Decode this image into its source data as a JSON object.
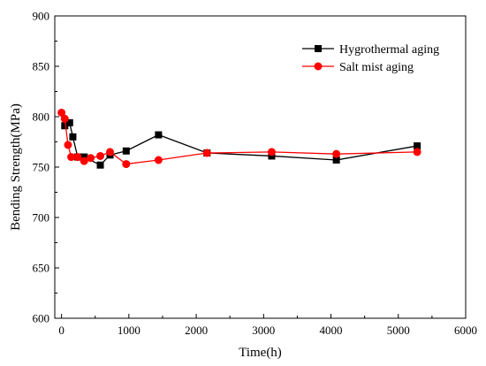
{
  "chart_data": {
    "type": "line",
    "xlabel": "Time(h)",
    "ylabel": "Bending Strength(MPa)",
    "xlim": [
      -100,
      6000
    ],
    "ylim": [
      600,
      900
    ],
    "x_ticks": [
      0,
      1000,
      2000,
      3000,
      4000,
      5000,
      6000
    ],
    "y_ticks": [
      600,
      650,
      700,
      750,
      800,
      850,
      900
    ],
    "x_tick_labels": [
      "0",
      "1000",
      "2000",
      "3000",
      "4000",
      "5000",
      "6000"
    ],
    "y_tick_labels": [
      "600",
      "650",
      "700",
      "750",
      "800",
      "850",
      "900"
    ],
    "grid": false,
    "legend_position": "top-right",
    "series": [
      {
        "name": "Hygrothermal aging",
        "color": "#000000",
        "marker": "square",
        "x": [
          48,
          120,
          168,
          240,
          336,
          576,
          720,
          960,
          1440,
          2160,
          3120,
          4080,
          5280
        ],
        "y": [
          791,
          794,
          780,
          760,
          760,
          752,
          762,
          766,
          782,
          764,
          761,
          757,
          771
        ]
      },
      {
        "name": "Salt mist aging",
        "color": "#ff0000",
        "marker": "circle",
        "x": [
          0,
          48,
          96,
          144,
          240,
          336,
          432,
          576,
          720,
          960,
          1440,
          2160,
          3120,
          4080,
          5280
        ],
        "y": [
          804,
          798,
          772,
          760,
          760,
          756,
          759,
          761,
          765,
          753,
          757,
          764,
          765,
          763,
          765
        ]
      }
    ]
  }
}
